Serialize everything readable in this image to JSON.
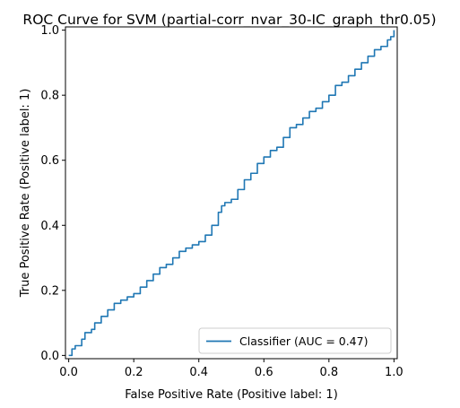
{
  "chart_data": {
    "type": "line",
    "title": "ROC Curve for SVM (partial-corr_nvar_30-IC_graph_thr0.05)",
    "xlabel": "False Positive Rate (Positive label: 1)",
    "ylabel": "True Positive Rate (Positive label: 1)",
    "xlim": [
      -0.01,
      1.01
    ],
    "ylim": [
      -0.01,
      1.01
    ],
    "xticks": [
      "0.0",
      "0.2",
      "0.4",
      "0.6",
      "0.8",
      "1.0"
    ],
    "yticks": [
      "0.0",
      "0.2",
      "0.4",
      "0.6",
      "0.8",
      "1.0"
    ],
    "grid": false,
    "legend_position": "lower-right",
    "series": [
      {
        "name": "Classifier (AUC = 0.47)",
        "color": "#1f77b4",
        "x": [
          0.0,
          0.01,
          0.02,
          0.04,
          0.05,
          0.07,
          0.08,
          0.1,
          0.12,
          0.14,
          0.16,
          0.18,
          0.2,
          0.22,
          0.24,
          0.26,
          0.28,
          0.3,
          0.32,
          0.34,
          0.36,
          0.38,
          0.4,
          0.42,
          0.44,
          0.46,
          0.47,
          0.48,
          0.5,
          0.52,
          0.54,
          0.56,
          0.58,
          0.6,
          0.62,
          0.64,
          0.66,
          0.68,
          0.7,
          0.72,
          0.74,
          0.76,
          0.78,
          0.8,
          0.82,
          0.84,
          0.86,
          0.88,
          0.9,
          0.92,
          0.94,
          0.96,
          0.98,
          0.99,
          1.0
        ],
        "y": [
          0.0,
          0.02,
          0.03,
          0.05,
          0.07,
          0.08,
          0.1,
          0.12,
          0.14,
          0.16,
          0.17,
          0.18,
          0.19,
          0.21,
          0.23,
          0.25,
          0.27,
          0.28,
          0.3,
          0.32,
          0.33,
          0.34,
          0.35,
          0.37,
          0.4,
          0.44,
          0.46,
          0.47,
          0.48,
          0.51,
          0.54,
          0.56,
          0.59,
          0.61,
          0.63,
          0.64,
          0.67,
          0.7,
          0.71,
          0.73,
          0.75,
          0.76,
          0.78,
          0.8,
          0.83,
          0.84,
          0.86,
          0.88,
          0.9,
          0.92,
          0.94,
          0.95,
          0.97,
          0.98,
          1.0
        ]
      }
    ]
  }
}
